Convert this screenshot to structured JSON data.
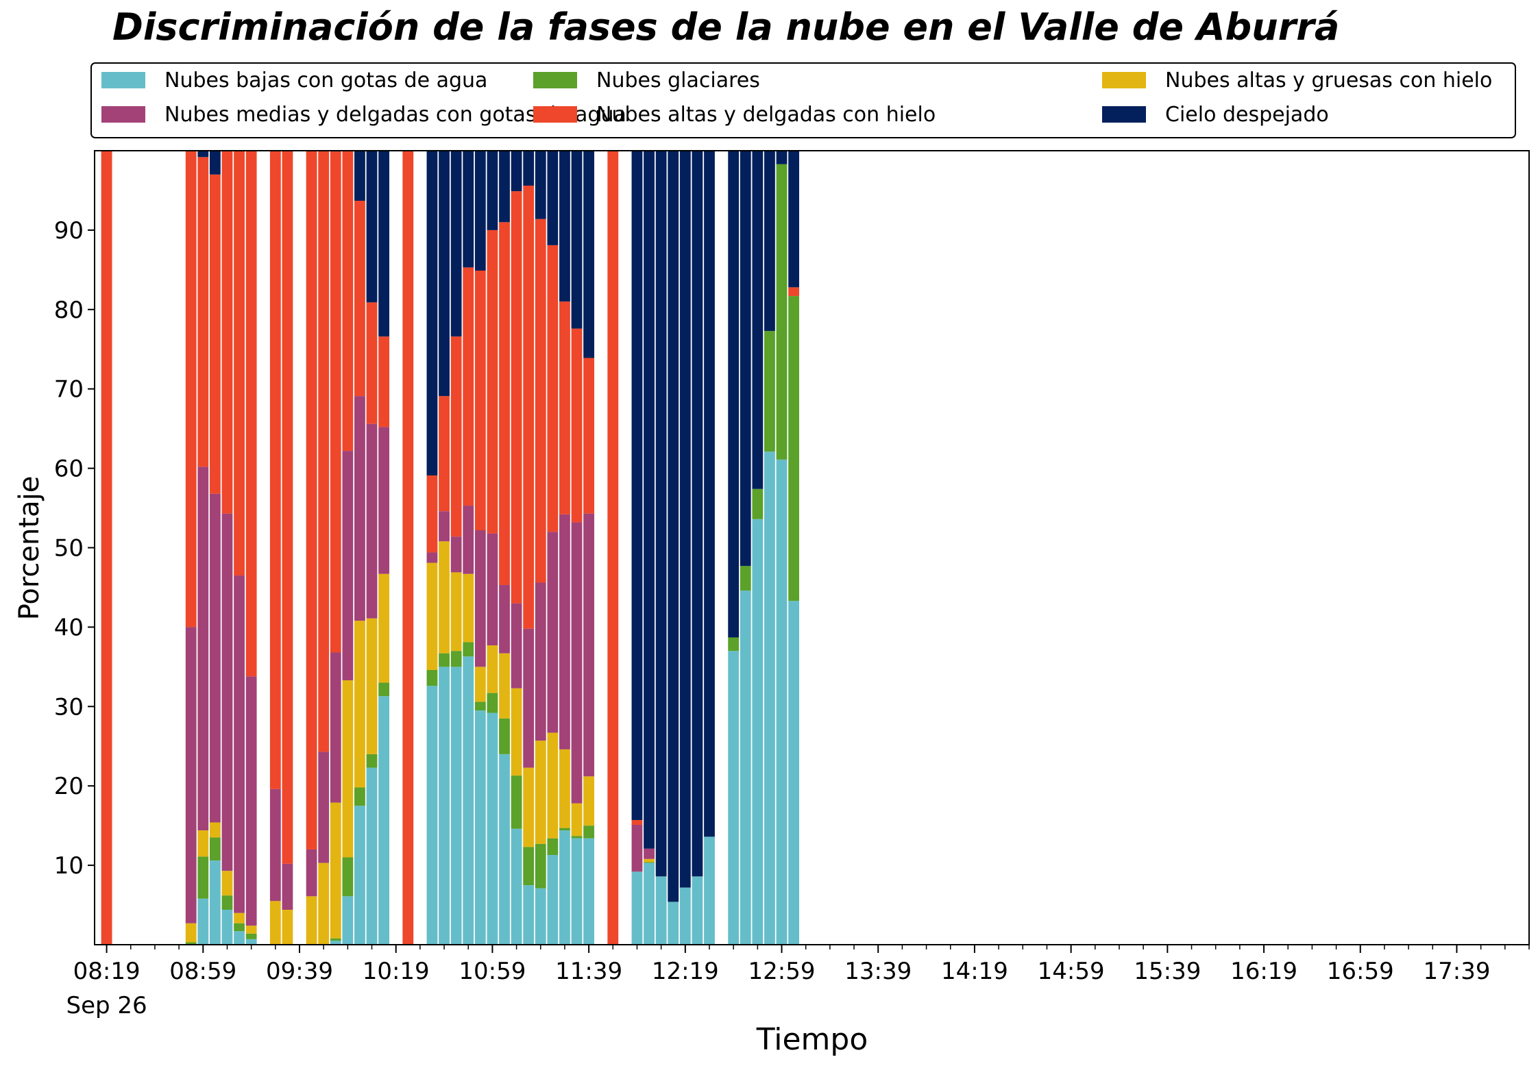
{
  "chart_data": {
    "type": "bar",
    "stacked": true,
    "title": "Discriminación de la fases de la nube en el Valle de Aburrá",
    "xlabel": "Tiempo",
    "ylabel": "Porcentaje",
    "ylim": [
      0,
      100
    ],
    "yticks": [
      10,
      20,
      30,
      40,
      50,
      60,
      70,
      80,
      90
    ],
    "xlim": [
      "08:14",
      "18:09"
    ],
    "xtick_labels": [
      "08:19",
      "08:59",
      "09:39",
      "10:19",
      "10:59",
      "11:39",
      "12:19",
      "12:59",
      "13:39",
      "14:19",
      "14:59",
      "15:39",
      "16:19",
      "16:59",
      "17:39"
    ],
    "xtick_sublabel": "Sep 26",
    "minor_tick_interval_minutes": 10,
    "legend_position": "top",
    "legend_columns": 3,
    "grid": false,
    "series": [
      {
        "name": "Nubes bajas con gotas de agua",
        "color": "#66bdca"
      },
      {
        "name": "Nubes glaciares",
        "color": "#5ba12a"
      },
      {
        "name": "Nubes altas y gruesas con hielo",
        "color": "#e3b512"
      },
      {
        "name": "Nubes medias y delgadas con gotas de agua",
        "color": "#a24277"
      },
      {
        "name": "Nubes altas y delgadas con hielo",
        "color": "#ee472b"
      },
      {
        "name": "Cielo despejado",
        "color": "#03205c"
      }
    ],
    "bars": [
      {
        "time": "08:19",
        "values": [
          0,
          0,
          0,
          0,
          100,
          0
        ]
      },
      {
        "time": "08:54",
        "values": [
          0,
          0.3,
          2.4,
          37.3,
          60,
          0
        ]
      },
      {
        "time": "08:59",
        "values": [
          5.8,
          5.3,
          3.3,
          45.8,
          39,
          0.8
        ]
      },
      {
        "time": "09:04",
        "values": [
          10.6,
          2.9,
          1.9,
          41.4,
          40.2,
          3
        ]
      },
      {
        "time": "09:09",
        "values": [
          4.4,
          1.8,
          3.1,
          45,
          45.7,
          0
        ]
      },
      {
        "time": "09:14",
        "values": [
          1.7,
          1,
          1.3,
          42.5,
          53.5,
          0
        ]
      },
      {
        "time": "09:19",
        "values": [
          0.7,
          0.7,
          1,
          31.4,
          66.2,
          0
        ]
      },
      {
        "time": "09:29",
        "values": [
          0,
          0,
          5.5,
          14.1,
          80.4,
          0
        ]
      },
      {
        "time": "09:34",
        "values": [
          0,
          0,
          4.4,
          5.8,
          89.8,
          0
        ]
      },
      {
        "time": "09:44",
        "values": [
          0,
          0,
          6.1,
          5.9,
          88,
          0
        ]
      },
      {
        "time": "09:49",
        "values": [
          0,
          0,
          10.3,
          14,
          75.7,
          0
        ]
      },
      {
        "time": "09:54",
        "values": [
          0.5,
          0.3,
          17.1,
          18.9,
          63.1,
          0.1
        ]
      },
      {
        "time": "09:59",
        "values": [
          6.1,
          4.9,
          22.3,
          28.9,
          37.8,
          0
        ]
      },
      {
        "time": "10:04",
        "values": [
          17.5,
          2.3,
          21,
          28.3,
          24.6,
          6.3
        ]
      },
      {
        "time": "10:09",
        "values": [
          22.3,
          1.7,
          17.1,
          24.5,
          15.3,
          19.1
        ]
      },
      {
        "time": "10:14",
        "values": [
          31.3,
          1.7,
          13.7,
          18.5,
          11.4,
          23.4
        ]
      },
      {
        "time": "10:24",
        "values": [
          0,
          0,
          0,
          0,
          100,
          0
        ]
      },
      {
        "time": "10:34",
        "values": [
          32.6,
          2,
          13.5,
          1.3,
          9.7,
          40.9
        ]
      },
      {
        "time": "10:39",
        "values": [
          35,
          1.7,
          14.1,
          3.8,
          14.5,
          30.9
        ]
      },
      {
        "time": "10:44",
        "values": [
          35,
          2,
          9.9,
          4.5,
          25.2,
          23.4
        ]
      },
      {
        "time": "10:49",
        "values": [
          36.3,
          1.8,
          8.6,
          8.6,
          30,
          14.7
        ]
      },
      {
        "time": "10:54",
        "values": [
          29.5,
          1.1,
          4.4,
          17.2,
          32.7,
          15.1
        ]
      },
      {
        "time": "10:59",
        "values": [
          29.2,
          2.5,
          6,
          14.1,
          38.2,
          10
        ]
      },
      {
        "time": "11:04",
        "values": [
          24,
          4.5,
          8.2,
          8.6,
          45.7,
          9
        ]
      },
      {
        "time": "11:09",
        "values": [
          14.6,
          6.7,
          11,
          10.7,
          51.9,
          5.1
        ]
      },
      {
        "time": "11:14",
        "values": [
          7.5,
          4.8,
          10,
          17.5,
          55.8,
          4.4
        ]
      },
      {
        "time": "11:19",
        "values": [
          7.1,
          5.6,
          13,
          19.9,
          45.8,
          8.6
        ]
      },
      {
        "time": "11:24",
        "values": [
          11.3,
          2.1,
          13.3,
          25.3,
          36.1,
          11.9
        ]
      },
      {
        "time": "11:29",
        "values": [
          14.4,
          0.3,
          9.9,
          29.6,
          26.8,
          19
        ]
      },
      {
        "time": "11:34",
        "values": [
          13.4,
          0.3,
          4.1,
          35.4,
          24.4,
          22.4
        ]
      },
      {
        "time": "11:39",
        "values": [
          13.4,
          1.6,
          6.2,
          33.1,
          19.6,
          26.1
        ]
      },
      {
        "time": "11:49",
        "values": [
          0,
          0,
          0,
          0,
          100,
          0
        ]
      },
      {
        "time": "11:59",
        "values": [
          9.2,
          0,
          0,
          5.9,
          0.6,
          84.3
        ]
      },
      {
        "time": "12:04",
        "values": [
          10.3,
          0.1,
          0.4,
          1.3,
          0,
          87.9
        ]
      },
      {
        "time": "12:09",
        "values": [
          8.6,
          0,
          0,
          0,
          0,
          91.4
        ]
      },
      {
        "time": "12:14",
        "values": [
          5.4,
          0,
          0,
          0,
          0,
          94.6
        ]
      },
      {
        "time": "12:19",
        "values": [
          7.2,
          0,
          0,
          0,
          0,
          92.8
        ]
      },
      {
        "time": "12:24",
        "values": [
          8.6,
          0,
          0,
          0,
          0,
          91.4
        ]
      },
      {
        "time": "12:29",
        "values": [
          13.6,
          0,
          0,
          0,
          0,
          86.4
        ]
      },
      {
        "time": "12:39",
        "values": [
          37,
          1.7,
          0,
          0,
          0,
          61.3
        ]
      },
      {
        "time": "12:44",
        "values": [
          44.6,
          3.1,
          0,
          0,
          0,
          52.3
        ]
      },
      {
        "time": "12:49",
        "values": [
          53.6,
          3.8,
          0,
          0,
          0,
          42.6
        ]
      },
      {
        "time": "12:54",
        "values": [
          62.1,
          15.2,
          0,
          0,
          0,
          22.7
        ]
      },
      {
        "time": "12:59",
        "values": [
          61.1,
          37.2,
          0,
          0,
          0,
          1.7
        ]
      },
      {
        "time": "13:04",
        "values": [
          43.3,
          38.4,
          0,
          0,
          1.1,
          17.2
        ]
      }
    ]
  }
}
